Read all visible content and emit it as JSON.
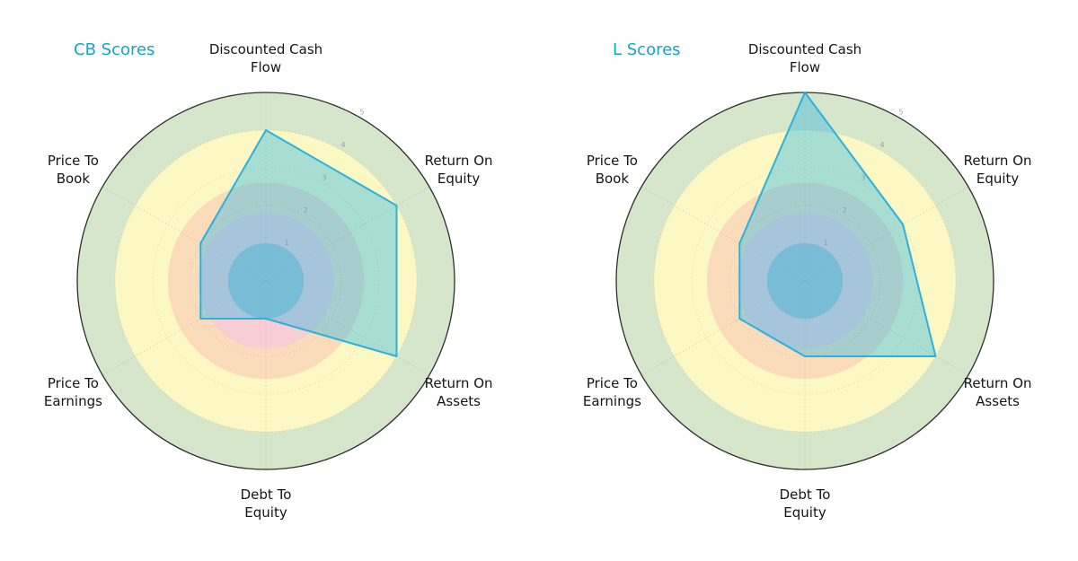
{
  "page": {
    "background": "#ffffff"
  },
  "chart_data": [
    {
      "type": "radar",
      "title": "CB Scores",
      "title_color": "#14a3cf",
      "categories": [
        "Discounted Cash Flow",
        "Return On Equity",
        "Return On Assets",
        "Debt To Equity",
        "Price To Earnings",
        "Price To Book"
      ],
      "category_lines": [
        [
          "Discounted Cash",
          "Flow"
        ],
        [
          "Return On",
          "Equity"
        ],
        [
          "Return On",
          "Assets"
        ],
        [
          "Debt To",
          "Equity"
        ],
        [
          "Price To",
          "Earnings"
        ],
        [
          "Price To",
          "Book"
        ]
      ],
      "values": [
        4,
        4,
        4,
        1,
        2,
        2
      ],
      "rlim": [
        0,
        5
      ],
      "rticks": [
        "1",
        "2",
        "3",
        "4",
        "5"
      ],
      "bands": [
        {
          "from": 4,
          "to": 5,
          "color": "#d6e6ca"
        },
        {
          "from": 2.6,
          "to": 4,
          "color": "#fcf8c3"
        },
        {
          "from": 1.8,
          "to": 2.6,
          "color": "#fadcba"
        },
        {
          "from": 1,
          "to": 1.8,
          "color": "#f8cdd3"
        },
        {
          "from": 0,
          "to": 1,
          "color": "#a9c0cf"
        }
      ],
      "line_color": "#29b2de",
      "fill_color": "#35b8e4",
      "fill_opacity": 0.42,
      "grid": true,
      "legend": "none"
    },
    {
      "type": "radar",
      "title": "L Scores",
      "title_color": "#14a3cf",
      "categories": [
        "Discounted Cash Flow",
        "Return On Equity",
        "Return On Assets",
        "Debt To Equity",
        "Price To Earnings",
        "Price To Book"
      ],
      "category_lines": [
        [
          "Discounted Cash",
          "Flow"
        ],
        [
          "Return On",
          "Equity"
        ],
        [
          "Return On",
          "Assets"
        ],
        [
          "Debt To",
          "Equity"
        ],
        [
          "Price To",
          "Earnings"
        ],
        [
          "Price To",
          "Book"
        ]
      ],
      "values": [
        5,
        3,
        4,
        2,
        2,
        2
      ],
      "rlim": [
        0,
        5
      ],
      "rticks": [
        "1",
        "2",
        "3",
        "4",
        "5"
      ],
      "bands": [
        {
          "from": 4,
          "to": 5,
          "color": "#d6e6ca"
        },
        {
          "from": 2.6,
          "to": 4,
          "color": "#fcf8c3"
        },
        {
          "from": 1.8,
          "to": 2.6,
          "color": "#fadcba"
        },
        {
          "from": 1,
          "to": 1.8,
          "color": "#f8cdd3"
        },
        {
          "from": 0,
          "to": 1,
          "color": "#a9c0cf"
        }
      ],
      "line_color": "#29b2de",
      "fill_color": "#35b8e4",
      "fill_opacity": 0.42,
      "grid": true,
      "legend": "none"
    }
  ]
}
